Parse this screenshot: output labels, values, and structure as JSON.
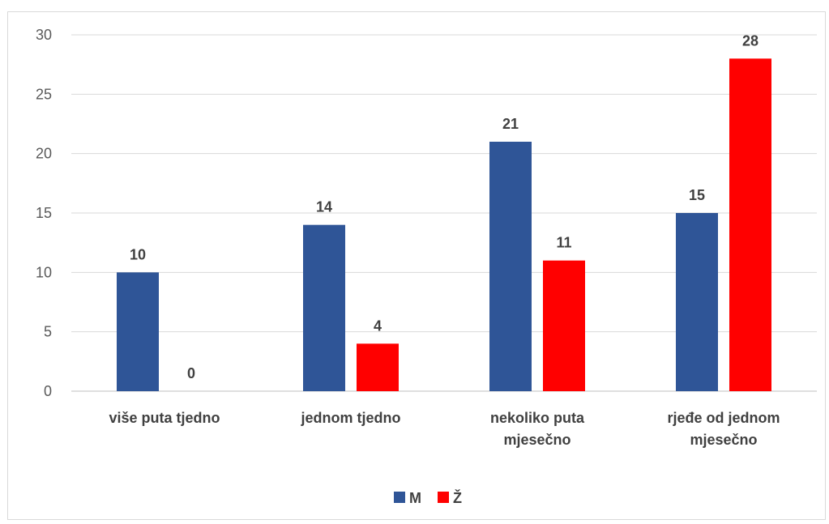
{
  "chart_data": {
    "type": "bar",
    "categories": [
      [
        "više puta tjedno"
      ],
      [
        "jednom tjedno"
      ],
      [
        "nekoliko puta",
        "mjesečno"
      ],
      [
        "rjeđe od jednom",
        "mjesečno"
      ]
    ],
    "series": [
      {
        "name": "M",
        "values": [
          10,
          14,
          21,
          15
        ],
        "color": "#2f5597"
      },
      {
        "name": "Ž",
        "values": [
          0,
          4,
          11,
          28
        ],
        "color": "#ff0000"
      }
    ],
    "y_ticks": [
      0,
      5,
      10,
      15,
      20,
      25,
      30
    ],
    "ylim": [
      0,
      30
    ],
    "grid": true,
    "legend_position": "bottom",
    "data_labels": true
  }
}
